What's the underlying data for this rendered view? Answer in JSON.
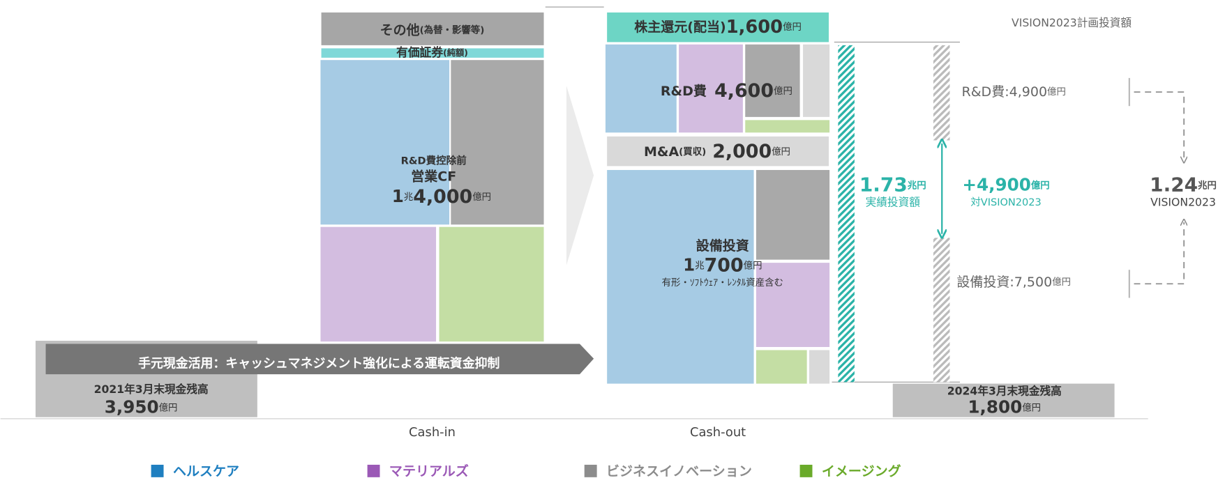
{
  "cash_in": {
    "other": {
      "main": "その他",
      "sub": "(為替・影響等)"
    },
    "securities": {
      "main": "有価証券",
      "sub": "(純額)"
    },
    "operating_cf": {
      "pre": "R&D費控除前",
      "name": "営業CF",
      "n1": "1",
      "u1": "兆",
      "n2": "4,000",
      "u2": "億円"
    },
    "banner": "手元現金活用：キャッシュマネジメント強化による運転資金抑制",
    "start_cash": {
      "label": "2021年3月末現金残高",
      "value": "3,950",
      "unit": "億円"
    },
    "caption": "Cash-in"
  },
  "cash_out": {
    "dividend": {
      "label": "株主還元(配当)",
      "value": "1,600",
      "unit": "億円"
    },
    "rnd": {
      "label": "R&D費",
      "value": "4,600",
      "unit": "億円"
    },
    "mna": {
      "label": "M&A",
      "sub": "(買収)",
      "value": "2,000",
      "unit": "億円"
    },
    "capex": {
      "label": "設備投資",
      "n1": "1",
      "u1": "兆",
      "n2": "700",
      "u2": "億円",
      "note": "有形・ｿﾌﾄｳｪｱ・ﾚﾝﾀﾙ資産含む"
    },
    "end_cash": {
      "label": "2024年3月末現金残高",
      "value": "1,800",
      "unit": "億円"
    },
    "caption": "Cash-out"
  },
  "actual": {
    "value": "1.73",
    "unit": "兆円",
    "label": "実績投資額"
  },
  "diff": {
    "value": "+4,900",
    "unit": "億円",
    "label": "対VISION2023"
  },
  "plan": {
    "title": "VISION2023計画投資額",
    "rnd": {
      "label": "R&D費:4,900",
      "unit": "億円"
    },
    "capex": {
      "label": "設備投資:7,500",
      "unit": "億円"
    },
    "total": {
      "value": "1.24",
      "unit": "兆円",
      "label": "VISION2023"
    }
  },
  "legend": [
    {
      "name": "ヘルスケア",
      "color": "#1f7fc0"
    },
    {
      "name": "マテリアルズ",
      "color": "#9b59b6"
    },
    {
      "name": "ビジネスイノベーション",
      "color": "#8c8c8c"
    },
    {
      "name": "イメージング",
      "color": "#6aaa2a"
    }
  ]
}
